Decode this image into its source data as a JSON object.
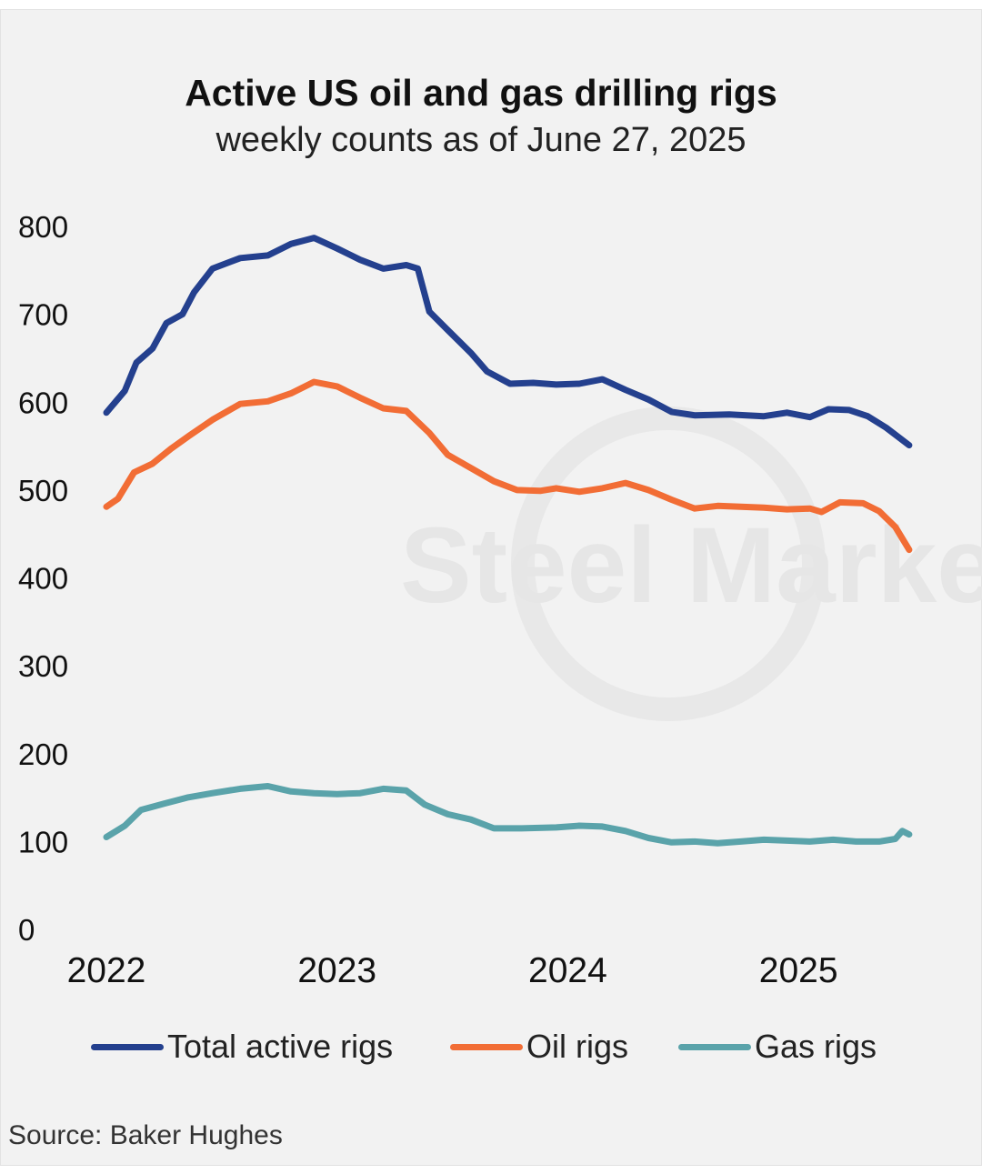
{
  "title": "Active US oil and gas drilling rigs",
  "subtitle": "weekly counts as of June 27, 2025",
  "source": "Source: Baker Hughes",
  "watermark": "Steel Market",
  "chart_data": {
    "type": "line",
    "title": "Active US oil and gas drilling rigs",
    "subtitle": "weekly counts as of June 27, 2025",
    "xlabel": "",
    "ylabel": "",
    "xlim": [
      2022.0,
      2025.5
    ],
    "ylim": [
      0,
      800
    ],
    "x_ticks": [
      "2022",
      "2023",
      "2024",
      "2025"
    ],
    "y_ticks": [
      "0",
      "100",
      "200",
      "300",
      "400",
      "500",
      "600",
      "700",
      "800"
    ],
    "grid": false,
    "legend_position": "bottom",
    "series": [
      {
        "name": "Total active rigs",
        "color": "#24408e",
        "points": [
          [
            2022.0,
            588
          ],
          [
            2022.08,
            613
          ],
          [
            2022.13,
            645
          ],
          [
            2022.2,
            661
          ],
          [
            2022.26,
            690
          ],
          [
            2022.33,
            700
          ],
          [
            2022.38,
            725
          ],
          [
            2022.46,
            752
          ],
          [
            2022.58,
            764
          ],
          [
            2022.7,
            767
          ],
          [
            2022.8,
            780
          ],
          [
            2022.9,
            787
          ],
          [
            2023.0,
            775
          ],
          [
            2023.1,
            762
          ],
          [
            2023.2,
            752
          ],
          [
            2023.3,
            756
          ],
          [
            2023.35,
            752
          ],
          [
            2023.4,
            703
          ],
          [
            2023.48,
            682
          ],
          [
            2023.58,
            656
          ],
          [
            2023.65,
            635
          ],
          [
            2023.75,
            621
          ],
          [
            2023.85,
            622
          ],
          [
            2023.95,
            620
          ],
          [
            2024.05,
            621
          ],
          [
            2024.15,
            626
          ],
          [
            2024.25,
            614
          ],
          [
            2024.35,
            603
          ],
          [
            2024.45,
            589
          ],
          [
            2024.55,
            585
          ],
          [
            2024.7,
            586
          ],
          [
            2024.85,
            584
          ],
          [
            2024.95,
            588
          ],
          [
            2025.05,
            583
          ],
          [
            2025.13,
            592
          ],
          [
            2025.22,
            591
          ],
          [
            2025.3,
            584
          ],
          [
            2025.38,
            571
          ],
          [
            2025.48,
            551
          ]
        ]
      },
      {
        "name": "Oil rigs",
        "color": "#f26d35",
        "points": [
          [
            2022.0,
            481
          ],
          [
            2022.05,
            490
          ],
          [
            2022.12,
            520
          ],
          [
            2022.2,
            530
          ],
          [
            2022.28,
            547
          ],
          [
            2022.36,
            562
          ],
          [
            2022.46,
            580
          ],
          [
            2022.58,
            598
          ],
          [
            2022.7,
            601
          ],
          [
            2022.8,
            610
          ],
          [
            2022.9,
            623
          ],
          [
            2023.0,
            618
          ],
          [
            2023.1,
            605
          ],
          [
            2023.2,
            593
          ],
          [
            2023.3,
            590
          ],
          [
            2023.4,
            565
          ],
          [
            2023.48,
            540
          ],
          [
            2023.58,
            525
          ],
          [
            2023.68,
            510
          ],
          [
            2023.78,
            500
          ],
          [
            2023.88,
            499
          ],
          [
            2023.95,
            502
          ],
          [
            2024.05,
            498
          ],
          [
            2024.15,
            502
          ],
          [
            2024.25,
            508
          ],
          [
            2024.35,
            500
          ],
          [
            2024.45,
            489
          ],
          [
            2024.55,
            479
          ],
          [
            2024.65,
            482
          ],
          [
            2024.75,
            481
          ],
          [
            2024.85,
            480
          ],
          [
            2024.95,
            478
          ],
          [
            2025.05,
            479
          ],
          [
            2025.1,
            475
          ],
          [
            2025.18,
            486
          ],
          [
            2025.28,
            485
          ],
          [
            2025.35,
            476
          ],
          [
            2025.42,
            458
          ],
          [
            2025.48,
            432
          ]
        ]
      },
      {
        "name": "Gas rigs",
        "color": "#5aa3aa",
        "points": [
          [
            2022.0,
            105
          ],
          [
            2022.08,
            118
          ],
          [
            2022.15,
            136
          ],
          [
            2022.25,
            143
          ],
          [
            2022.35,
            150
          ],
          [
            2022.46,
            155
          ],
          [
            2022.58,
            160
          ],
          [
            2022.7,
            163
          ],
          [
            2022.8,
            157
          ],
          [
            2022.9,
            155
          ],
          [
            2023.0,
            154
          ],
          [
            2023.1,
            155
          ],
          [
            2023.2,
            160
          ],
          [
            2023.3,
            158
          ],
          [
            2023.38,
            142
          ],
          [
            2023.48,
            131
          ],
          [
            2023.58,
            125
          ],
          [
            2023.68,
            115
          ],
          [
            2023.8,
            115
          ],
          [
            2023.95,
            116
          ],
          [
            2024.05,
            118
          ],
          [
            2024.15,
            117
          ],
          [
            2024.25,
            112
          ],
          [
            2024.35,
            104
          ],
          [
            2024.45,
            99
          ],
          [
            2024.55,
            100
          ],
          [
            2024.65,
            98
          ],
          [
            2024.75,
            100
          ],
          [
            2024.85,
            102
          ],
          [
            2024.95,
            101
          ],
          [
            2025.05,
            100
          ],
          [
            2025.15,
            102
          ],
          [
            2025.25,
            100
          ],
          [
            2025.35,
            100
          ],
          [
            2025.42,
            103
          ],
          [
            2025.45,
            112
          ],
          [
            2025.48,
            108
          ]
        ]
      }
    ]
  }
}
